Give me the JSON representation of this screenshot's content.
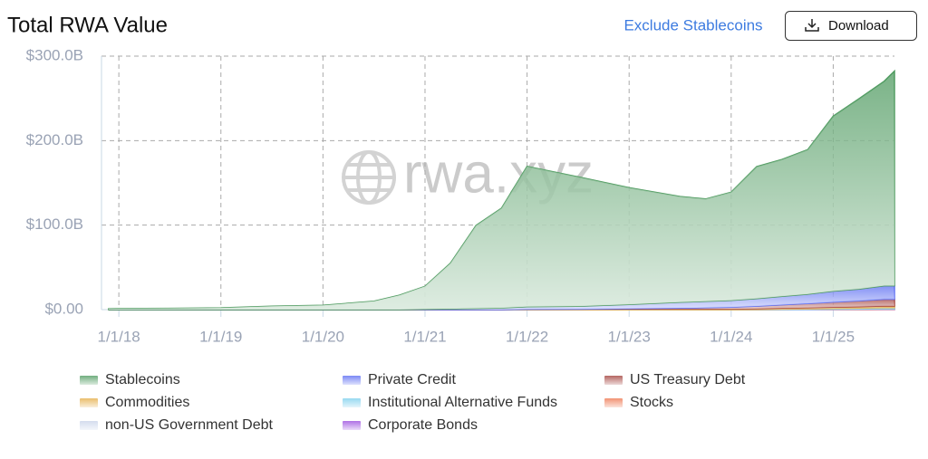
{
  "header": {
    "title": "Total RWA Value",
    "toggle": "Exclude Stablecoins",
    "button": "Download"
  },
  "chart_data": {
    "type": "stacked_area",
    "watermark": "rwa.xyz",
    "x": [
      2017.9,
      2018,
      2018.5,
      2019,
      2019.5,
      2020,
      2020.5,
      2020.75,
      2021,
      2021.25,
      2021.5,
      2021.75,
      2022,
      2022.5,
      2023,
      2023.5,
      2023.75,
      2024,
      2024.25,
      2024.5,
      2024.75,
      2025,
      2025.25,
      2025.5,
      2025.6
    ],
    "xlim": [
      2017.83,
      2025.6
    ],
    "xticks": [
      {
        "value": 2018,
        "label": "1/1/18"
      },
      {
        "value": 2019,
        "label": "1/1/19"
      },
      {
        "value": 2020,
        "label": "1/1/20"
      },
      {
        "value": 2021,
        "label": "1/1/21"
      },
      {
        "value": 2022,
        "label": "1/1/22"
      },
      {
        "value": 2023,
        "label": "1/1/23"
      },
      {
        "value": 2024,
        "label": "1/1/24"
      },
      {
        "value": 2025,
        "label": "1/1/25"
      }
    ],
    "ylim": [
      0,
      300
    ],
    "yticks": [
      {
        "value": 0,
        "label": "$0.00"
      },
      {
        "value": 100,
        "label": "$100.0B"
      },
      {
        "value": 200,
        "label": "$200.0B"
      },
      {
        "value": 300,
        "label": "$300.0B"
      }
    ],
    "grid": true,
    "series": [
      {
        "name": "Stablecoins",
        "color": "#4e9a5f",
        "values": [
          1,
          1.2,
          1.5,
          2,
          4,
          5,
          10,
          17,
          27,
          54,
          98,
          118,
          166,
          153,
          138,
          125,
          121,
          128,
          156,
          162,
          171,
          207,
          225,
          242,
          254
        ]
      },
      {
        "name": "Private Credit",
        "color": "#5a6cf2",
        "values": [
          0,
          0,
          0,
          0,
          0,
          0,
          0,
          0,
          0.5,
          1,
          1.5,
          2,
          3,
          3.5,
          5,
          7,
          7.5,
          8,
          9,
          10,
          11,
          13,
          14,
          16,
          16
        ]
      },
      {
        "name": "US Treasury Debt",
        "color": "#a3403b",
        "values": [
          0,
          0,
          0,
          0,
          0,
          0,
          0,
          0,
          0,
          0,
          0,
          0,
          0,
          0,
          0.5,
          1,
          1.5,
          2,
          3,
          4,
          5,
          6,
          7,
          8,
          8
        ]
      },
      {
        "name": "Commodities",
        "color": "#e5ae48",
        "values": [
          0,
          0,
          0,
          0,
          0,
          0,
          0,
          0,
          0,
          0,
          0,
          0,
          0.5,
          0.6,
          0.7,
          0.8,
          0.9,
          1,
          1,
          1.2,
          1.3,
          1.5,
          1.6,
          1.8,
          1.8
        ]
      },
      {
        "name": "Institutional Alternative Funds",
        "color": "#7ccfee",
        "values": [
          0,
          0,
          0,
          0,
          0,
          0,
          0,
          0,
          0,
          0,
          0,
          0,
          0,
          0,
          0,
          0,
          0,
          0,
          0.2,
          0.5,
          0.8,
          1,
          1.2,
          1.5,
          1.5
        ]
      },
      {
        "name": "Stocks",
        "color": "#ef7750",
        "values": [
          0,
          0,
          0,
          0,
          0,
          0,
          0,
          0,
          0,
          0,
          0,
          0,
          0,
          0,
          0,
          0,
          0,
          0,
          0,
          0,
          0,
          0.2,
          0.3,
          0.5,
          0.5
        ]
      },
      {
        "name": "non-US Government Debt",
        "color": "#c9d5ea",
        "values": [
          0,
          0,
          0,
          0,
          0,
          0,
          0,
          0,
          0,
          0,
          0,
          0,
          0,
          0,
          0,
          0,
          0,
          0,
          0,
          0.1,
          0.1,
          0.2,
          0.2,
          0.3,
          0.3
        ]
      },
      {
        "name": "Corporate Bonds",
        "color": "#9b4ee0",
        "values": [
          0,
          0,
          0,
          0,
          0,
          0,
          0,
          0,
          0,
          0,
          0,
          0,
          0,
          0,
          0,
          0,
          0,
          0,
          0,
          0,
          0.1,
          0.1,
          0.1,
          0.2,
          0.2
        ]
      }
    ]
  }
}
